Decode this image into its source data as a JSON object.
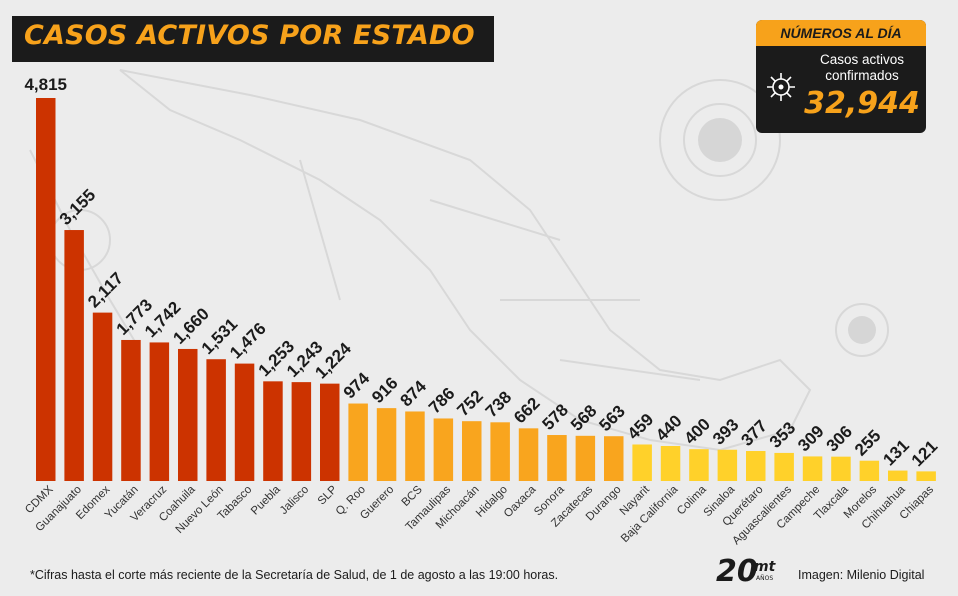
{
  "header": {
    "title": "CASOS ACTIVOS POR ESTADO"
  },
  "stat_box": {
    "heading": "NÚMEROS AL DÍA",
    "label_line1": "Casos activos",
    "label_line2": "confirmados",
    "value": "32,944"
  },
  "footer": {
    "footnote": "*Cifras hasta el corte más reciente de la Secretaría de Salud, de 1 de agosto a las 19:00 horas.",
    "credit": "Imagen: Milenio Digital",
    "logo_text": "20",
    "logo_sub": "mt",
    "logo_tag": "AÑOS"
  },
  "icons": {
    "stat": "virus-icon",
    "logo": "milenio-20-years-logo"
  },
  "colors": {
    "tier_high": "#cc3300",
    "tier_mid": "#f9a51e",
    "tier_low": "#ffd12a",
    "accent": "#f7a21b",
    "dark": "#1b1b1b"
  },
  "chart_data": {
    "type": "bar",
    "title": "CASOS ACTIVOS POR ESTADO",
    "xlabel": "",
    "ylabel": "",
    "grid": false,
    "categories": [
      "CDMX",
      "Guanajuato",
      "Edomex",
      "Yucatán",
      "Veracruz",
      "Coahuila",
      "Nuevo León",
      "Tabasco",
      "Puebla",
      "Jalisco",
      "SLP",
      "Q. Roo",
      "Guerero",
      "BCS",
      "Tamaulipas",
      "Michoacán",
      "Hidalgo",
      "Oaxaca",
      "Sonora",
      "Zacatecas",
      "Durango",
      "Nayarit",
      "Baja California",
      "Colima",
      "Sinaloa",
      "Querétaro",
      "Aguascalientes",
      "Campeche",
      "Tlaxcala",
      "Morelos",
      "Chihuahua",
      "Chiapas"
    ],
    "values": [
      4815,
      3155,
      2117,
      1773,
      1742,
      1660,
      1531,
      1476,
      1253,
      1243,
      1224,
      974,
      916,
      874,
      786,
      752,
      738,
      662,
      578,
      568,
      563,
      459,
      440,
      400,
      393,
      377,
      353,
      309,
      306,
      255,
      131,
      121
    ],
    "value_labels": [
      "4,815",
      "3,155",
      "2,117",
      "1,773",
      "1,742",
      "1,660",
      "1,531",
      "1,476",
      "1,253",
      "1,243",
      "1,224",
      "974",
      "916",
      "874",
      "786",
      "752",
      "738",
      "662",
      "578",
      "568",
      "563",
      "459",
      "440",
      "400",
      "393",
      "377",
      "353",
      "309",
      "306",
      "255",
      "131",
      "121"
    ],
    "tiers": [
      "high",
      "high",
      "high",
      "high",
      "high",
      "high",
      "high",
      "high",
      "high",
      "high",
      "high",
      "mid",
      "mid",
      "mid",
      "mid",
      "mid",
      "mid",
      "mid",
      "mid",
      "mid",
      "mid",
      "low",
      "low",
      "low",
      "low",
      "low",
      "low",
      "low",
      "low",
      "low",
      "low",
      "low"
    ]
  }
}
